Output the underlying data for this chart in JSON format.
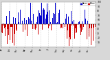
{
  "n_days": 365,
  "background_color": "#d8d8d8",
  "plot_bg": "#ffffff",
  "bar_color_above": "#0000cc",
  "bar_color_below": "#cc0000",
  "grid_color": "#aaaaaa",
  "baseline": 50,
  "y_min": 0,
  "y_max": 100,
  "legend_above_label": "Above",
  "legend_below_label": "Below",
  "month_days": [
    0,
    31,
    59,
    90,
    120,
    151,
    181,
    212,
    243,
    273,
    304,
    334,
    365
  ],
  "month_labels_full": [
    "Jan",
    "Feb",
    "Mar",
    "Apr",
    "May",
    "Jun",
    "Jul",
    "Aug",
    "Sep",
    "Oct",
    "Nov",
    "Dec"
  ],
  "y_tick_labels": [
    "10",
    "20",
    "30",
    "40",
    "50",
    "60",
    "70",
    "80",
    "90",
    "100"
  ],
  "y_ticks": [
    10,
    20,
    30,
    40,
    50,
    60,
    70,
    80,
    90,
    100
  ],
  "seed": 42
}
